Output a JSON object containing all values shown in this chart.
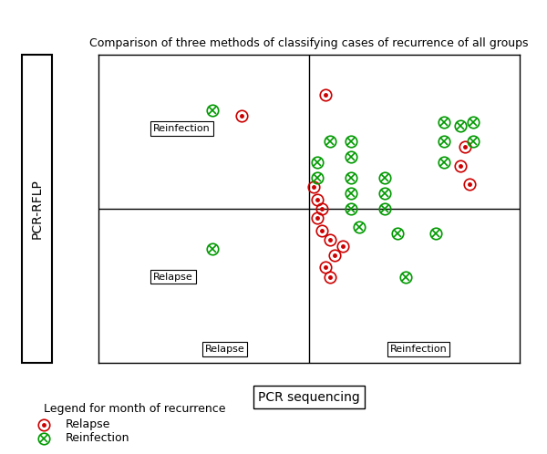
{
  "title": "Comparison of three methods of classifying cases of recurrence of all groups",
  "xlabel": "PCR sequencing",
  "ylabel": "PCR-RFLP",
  "relapse_color": "#cc0000",
  "reinfection_color": "#009900",
  "relapse_points": [
    [
      0.34,
      0.8
    ],
    [
      0.54,
      0.87
    ],
    [
      0.51,
      0.57
    ],
    [
      0.52,
      0.47
    ],
    [
      0.53,
      0.43
    ],
    [
      0.55,
      0.4
    ],
    [
      0.56,
      0.35
    ],
    [
      0.58,
      0.38
    ],
    [
      0.55,
      0.28
    ],
    [
      0.86,
      0.64
    ],
    [
      0.52,
      0.53
    ],
    [
      0.53,
      0.5
    ],
    [
      0.54,
      0.31
    ],
    [
      0.87,
      0.7
    ],
    [
      0.88,
      0.58
    ]
  ],
  "reinfection_points": [
    [
      0.27,
      0.82
    ],
    [
      0.27,
      0.37
    ],
    [
      0.55,
      0.72
    ],
    [
      0.6,
      0.72
    ],
    [
      0.52,
      0.65
    ],
    [
      0.52,
      0.6
    ],
    [
      0.6,
      0.67
    ],
    [
      0.6,
      0.6
    ],
    [
      0.68,
      0.6
    ],
    [
      0.6,
      0.55
    ],
    [
      0.68,
      0.55
    ],
    [
      0.6,
      0.5
    ],
    [
      0.68,
      0.5
    ],
    [
      0.82,
      0.78
    ],
    [
      0.89,
      0.78
    ],
    [
      0.82,
      0.72
    ],
    [
      0.89,
      0.72
    ],
    [
      0.82,
      0.65
    ],
    [
      0.62,
      0.44
    ],
    [
      0.71,
      0.42
    ],
    [
      0.8,
      0.42
    ],
    [
      0.73,
      0.28
    ],
    [
      0.86,
      0.77
    ]
  ],
  "quad_tl_label": "Reinfection",
  "quad_bl_label": "Relapse",
  "quad_bc_label": "Relapse",
  "quad_br_label": "Reinfection",
  "legend_title": "Legend for month of recurrence",
  "legend_relapse": "Relapse",
  "legend_reinfection": "Reinfection"
}
